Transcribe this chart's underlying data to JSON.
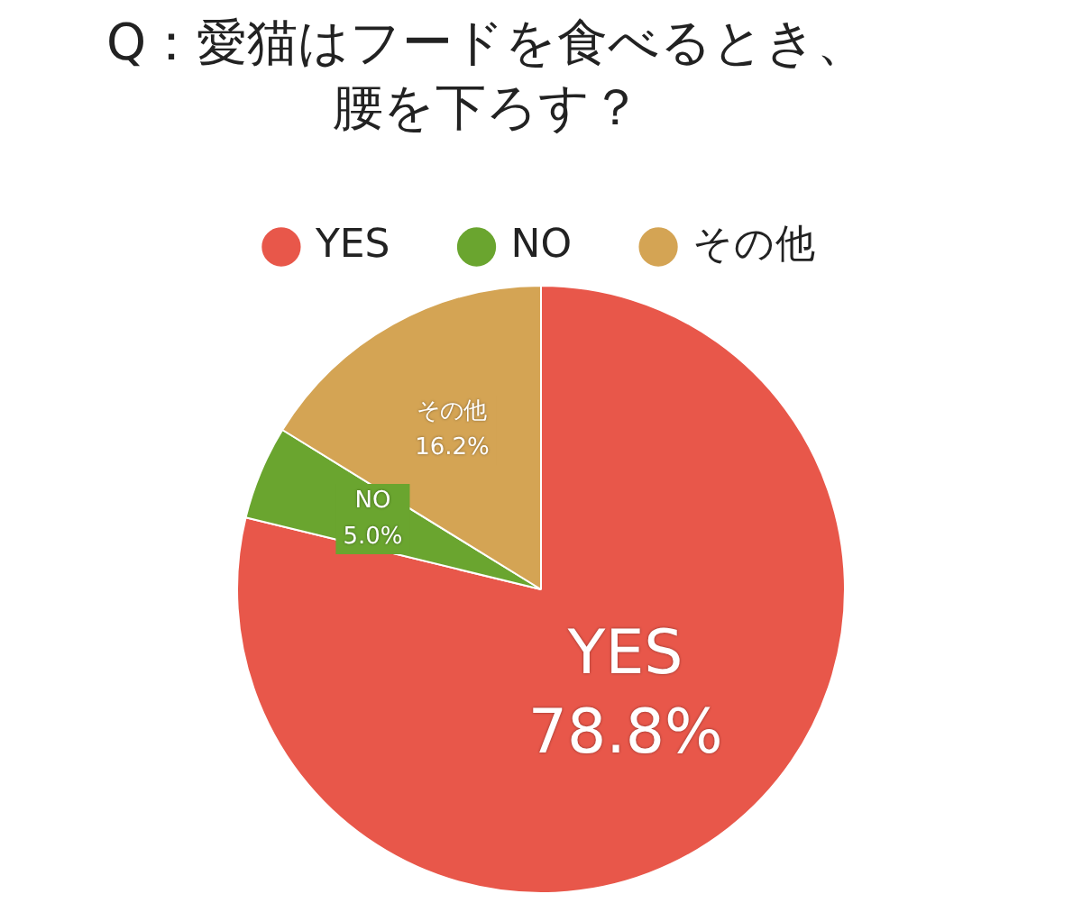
{
  "chart_data": {
    "type": "pie",
    "title": "Q：愛猫はフードを食べるとき、腰を下ろす？",
    "categories": [
      "YES",
      "NO",
      "その他"
    ],
    "values": [
      78.8,
      5.0,
      16.2
    ],
    "value_labels": [
      "78.8%",
      "5.0%",
      "16.2%"
    ],
    "colors": [
      "#e8574a",
      "#6aa52f",
      "#d4a454"
    ],
    "legend": "top"
  }
}
